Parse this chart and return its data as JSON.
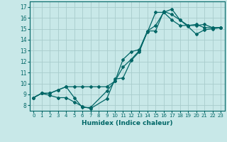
{
  "xlabel": "Humidex (Indice chaleur)",
  "background_color": "#c8e8e8",
  "grid_color": "#a8cccc",
  "line_color": "#006666",
  "xlim": [
    -0.5,
    23.5
  ],
  "ylim": [
    7.5,
    17.5
  ],
  "xticks": [
    0,
    1,
    2,
    3,
    4,
    5,
    6,
    7,
    8,
    9,
    10,
    11,
    12,
    13,
    14,
    15,
    16,
    17,
    18,
    19,
    20,
    21,
    22,
    23
  ],
  "yticks": [
    8,
    9,
    10,
    11,
    12,
    13,
    14,
    15,
    16,
    17
  ],
  "line1_x": [
    0,
    1,
    2,
    3,
    4,
    5,
    6,
    7,
    9,
    10,
    11,
    12,
    13,
    14,
    15,
    16,
    17,
    18,
    19,
    20,
    21,
    22,
    23
  ],
  "line1_y": [
    8.7,
    9.1,
    9.1,
    9.4,
    9.7,
    8.7,
    7.8,
    7.8,
    9.3,
    10.2,
    11.5,
    12.2,
    13.0,
    14.7,
    16.5,
    16.5,
    16.8,
    15.8,
    15.3,
    15.3,
    15.4,
    15.1,
    15.1
  ],
  "line2_x": [
    0,
    1,
    2,
    3,
    4,
    5,
    6,
    7,
    8,
    9,
    10,
    11,
    12,
    13,
    14,
    15,
    16,
    17,
    18,
    19,
    20,
    21,
    22,
    23
  ],
  "line2_y": [
    8.7,
    9.1,
    9.1,
    9.4,
    9.7,
    9.7,
    9.7,
    9.7,
    9.7,
    9.7,
    10.2,
    12.2,
    12.9,
    13.1,
    14.8,
    15.3,
    16.5,
    15.8,
    15.3,
    15.3,
    15.4,
    15.1,
    15.1,
    15.1
  ],
  "line3_x": [
    0,
    1,
    2,
    3,
    4,
    5,
    6,
    7,
    9,
    10,
    11,
    12,
    13,
    14,
    15,
    16,
    17,
    18,
    19,
    20,
    21,
    22,
    23
  ],
  "line3_y": [
    8.7,
    9.1,
    8.9,
    8.7,
    8.7,
    8.3,
    7.9,
    7.7,
    8.6,
    10.4,
    10.5,
    12.1,
    12.9,
    14.8,
    14.8,
    16.6,
    16.3,
    15.8,
    15.2,
    14.5,
    14.9,
    15.0,
    15.1
  ]
}
